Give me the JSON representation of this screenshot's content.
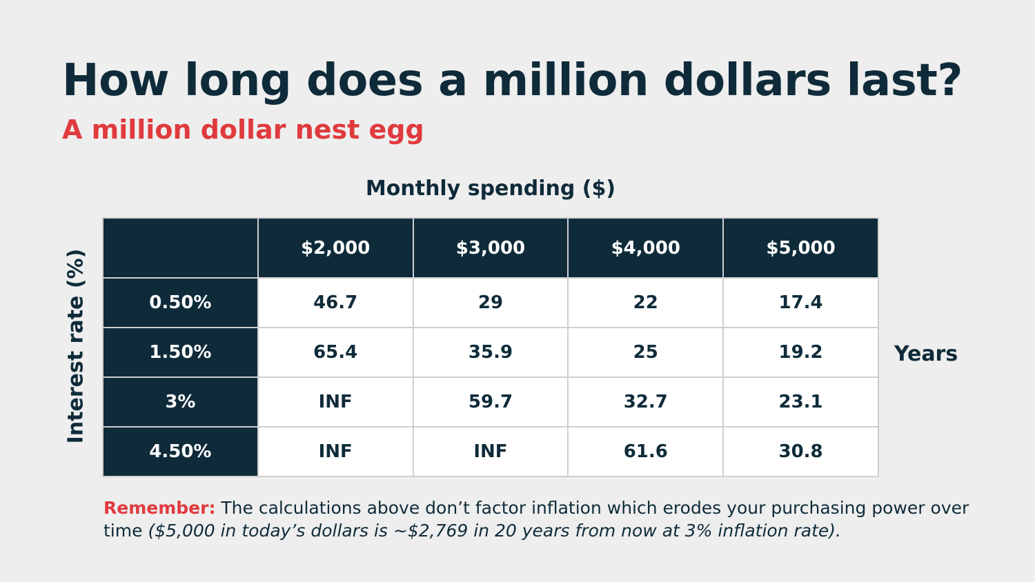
{
  "title": "How long does a million dollars last?",
  "subtitle": "A million dollar nest egg",
  "column_axis_label": "Monthly spending ($)",
  "row_axis_label": "Interest rate (%)",
  "unit_label": "Years",
  "table": {
    "columns": [
      "$2,000",
      "$3,000",
      "$4,000",
      "$5,000"
    ],
    "rows": [
      {
        "rate": "0.50%",
        "values": [
          "46.7",
          "29",
          "22",
          "17.4"
        ]
      },
      {
        "rate": "1.50%",
        "values": [
          "65.4",
          "35.9",
          "25",
          "19.2"
        ]
      },
      {
        "rate": "3%",
        "values": [
          "INF",
          "59.7",
          "32.7",
          "23.1"
        ]
      },
      {
        "rate": "4.50%",
        "values": [
          "INF",
          "INF",
          "61.6",
          "30.8"
        ]
      }
    ]
  },
  "note": {
    "label": "Remember:",
    "text": " The calculations above don’t factor inflation which erodes your purchasing power over time ",
    "italic": "($5,000 in today’s dollars is ~$2,769 in 20 years from now at 3% inflation rate)."
  },
  "colors": {
    "dark": "#0f2b3a",
    "accent": "#e03a3e",
    "background": "#eeeeee"
  }
}
